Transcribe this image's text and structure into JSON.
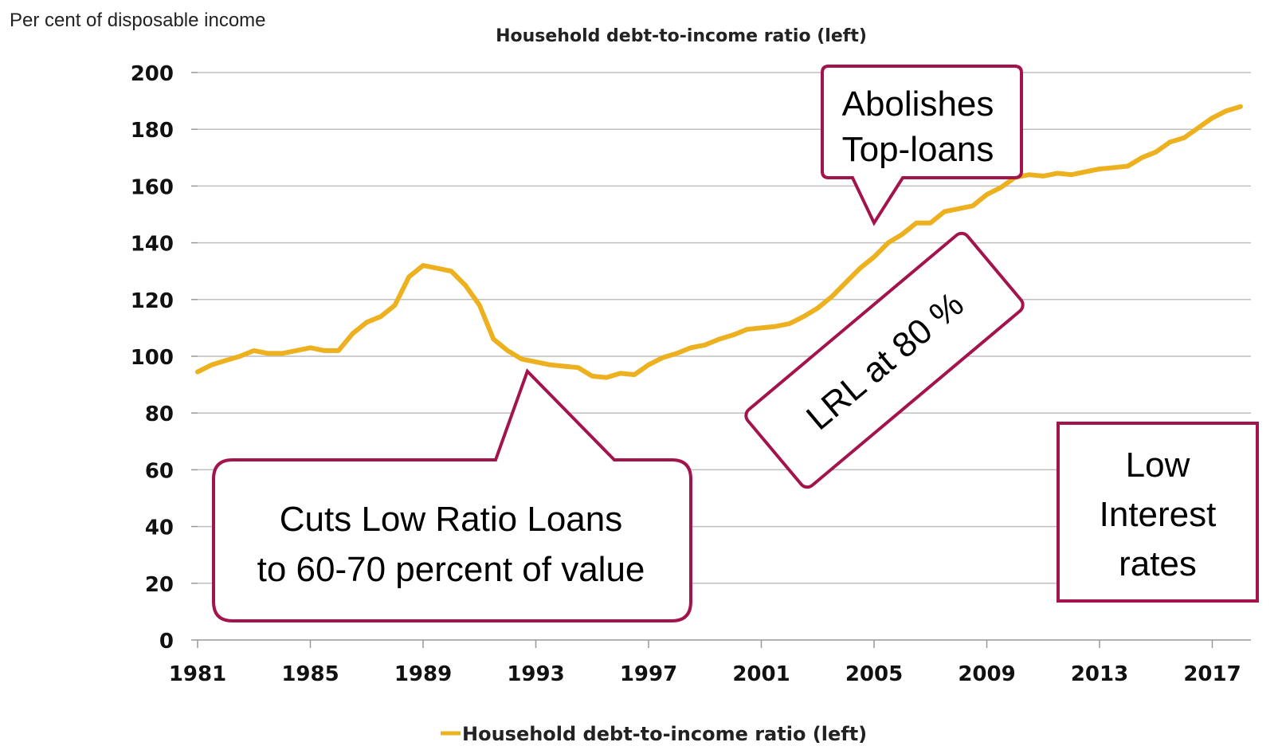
{
  "chart_data": {
    "type": "line",
    "title": "Household debt-to-income ratio (left)",
    "ylabel": "Per cent of disposable income",
    "xlabel": "",
    "xlim": [
      1981,
      2018
    ],
    "ylim": [
      0,
      200
    ],
    "y_ticks": [
      "0",
      "20",
      "40",
      "60",
      "80",
      "100",
      "120",
      "140",
      "160",
      "180",
      "200"
    ],
    "x_ticks": [
      "1981",
      "1985",
      "1989",
      "1993",
      "1997",
      "2001",
      "2005",
      "2009",
      "2013",
      "2017"
    ],
    "grid": true,
    "legend_position": "bottom",
    "series": [
      {
        "name": "Household debt-to-income ratio (left)",
        "color": "#EDB120",
        "x": [
          1981,
          1981.5,
          1982,
          1982.5,
          1983,
          1983.5,
          1984,
          1984.5,
          1985,
          1985.5,
          1986,
          1986.5,
          1987,
          1987.5,
          1988,
          1988.5,
          1989,
          1989.5,
          1990,
          1990.5,
          1991,
          1991.5,
          1992,
          1992.5,
          1993,
          1993.5,
          1994,
          1994.5,
          1995,
          1995.5,
          1996,
          1996.5,
          1997,
          1997.5,
          1998,
          1998.5,
          1999,
          1999.5,
          2000,
          2000.5,
          2001,
          2001.5,
          2002,
          2002.5,
          2003,
          2003.5,
          2004,
          2004.5,
          2005,
          2005.5,
          2006,
          2006.5,
          2007,
          2007.5,
          2008,
          2008.5,
          2009,
          2009.5,
          2010,
          2010.5,
          2011,
          2011.5,
          2012,
          2012.5,
          2013,
          2013.5,
          2014,
          2014.5,
          2015,
          2015.5,
          2016,
          2016.5,
          2017,
          2017.5,
          2018
        ],
        "values": [
          94.5,
          97,
          98.5,
          100,
          102,
          101,
          101,
          102,
          103,
          102,
          102,
          108,
          112,
          114,
          118,
          128,
          132,
          131,
          130,
          125,
          118,
          106,
          102,
          99,
          98,
          97,
          96.5,
          96,
          93,
          92.5,
          94,
          93.5,
          97,
          99.5,
          101,
          103,
          104,
          106,
          107.5,
          109.5,
          110,
          110.5,
          111.5,
          114,
          117,
          121,
          126,
          131,
          135,
          140,
          143,
          147,
          147,
          151,
          152,
          153,
          157,
          159.5,
          163,
          164,
          163.5,
          164.5,
          164,
          165,
          166,
          166.5,
          167,
          170,
          172,
          175.5,
          177,
          180.5,
          184,
          186.5,
          188
        ]
      }
    ],
    "annotations": [
      {
        "lines": [
          "Abolishes",
          "Top-loans"
        ],
        "x": 2005,
        "y": 147
      },
      {
        "lines": [
          "LRL at 80 %"
        ],
        "x": 2006.5,
        "y": 115
      },
      {
        "lines": [
          "Cuts Low Ratio Loans",
          "to 60-70 percent of value"
        ],
        "x": 1992.7,
        "y": 95
      },
      {
        "lines": [
          "Low",
          "Interest",
          "rates"
        ],
        "x": 2015,
        "y": 45
      }
    ]
  },
  "colors": {
    "line": "#EDB120",
    "callout_border": "#A3144D",
    "grid": "#BFBFBF",
    "axis": "#999999"
  }
}
